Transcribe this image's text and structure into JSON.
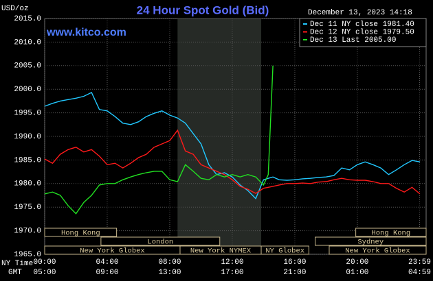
{
  "chart_data": {
    "type": "line",
    "title": "24 Hour Spot Gold (Bid)",
    "subtitle": "www.kitco.com",
    "timestamp": "December 13, 2023 14:18",
    "ylabel": "USD/oz",
    "xlabel": "NY Time",
    "xlabel2": "GMT",
    "xlim": [
      0,
      24.4
    ],
    "ylim": [
      1965,
      2015
    ],
    "yticks": [
      {
        "value": 1965,
        "label": "1965.0"
      },
      {
        "value": 1970,
        "label": "1970.0"
      },
      {
        "value": 1975,
        "label": "1975.0"
      },
      {
        "value": 1980,
        "label": "1980.0"
      },
      {
        "value": 1985,
        "label": "1985.0"
      },
      {
        "value": 1990,
        "label": "1990.0"
      },
      {
        "value": 1995,
        "label": "1995.0"
      },
      {
        "value": 2000,
        "label": "2000.0"
      },
      {
        "value": 2005,
        "label": "2005.0"
      },
      {
        "value": 2010,
        "label": "2010.0"
      },
      {
        "value": 2015,
        "label": "2015.0"
      }
    ],
    "xticks": [
      {
        "value": 0,
        "label": "00:00"
      },
      {
        "value": 4,
        "label": "04:00"
      },
      {
        "value": 8,
        "label": "08:00"
      },
      {
        "value": 12,
        "label": "12:00"
      },
      {
        "value": 16,
        "label": "16:00"
      },
      {
        "value": 20,
        "label": "20:00"
      },
      {
        "value": 23.983,
        "label": "23:59"
      }
    ],
    "xticks_gmt": [
      "05:00",
      "09:00",
      "13:00",
      "17:00",
      "21:00",
      "01:00",
      "04:59"
    ],
    "grid": true,
    "highlight": [
      8.5,
      13.85
    ],
    "sessions": [
      {
        "label": "Hong Kong",
        "row": 0,
        "start": 0,
        "end": 4.6
      },
      {
        "label": "Hong Kong",
        "row": 0,
        "start": 19.9,
        "end": 24.4
      },
      {
        "label": "London",
        "row": 1,
        "start": 3.6,
        "end": 11.2
      },
      {
        "label": "Sydney",
        "row": 1,
        "start": 17.3,
        "end": 24.4
      },
      {
        "label": "New York Globex",
        "row": 2,
        "start": 0,
        "end": 8.66
      },
      {
        "label": "New York NYMEX",
        "row": 2,
        "start": 8.66,
        "end": 13.85
      },
      {
        "label": "NY Globex",
        "row": 2,
        "start": 13.85,
        "end": 16.9
      },
      {
        "label": "New York Globex",
        "row": 2,
        "start": 18.2,
        "end": 24.4
      }
    ],
    "x": [
      0,
      0.5,
      1,
      1.5,
      2,
      2.5,
      3,
      3.5,
      4,
      4.5,
      5,
      5.5,
      6,
      6.5,
      7,
      7.5,
      8,
      8.5,
      9,
      9.5,
      10,
      10.5,
      11,
      11.5,
      12,
      12.5,
      13,
      13.5,
      14,
      14.3,
      14.6,
      15,
      15.5,
      16,
      16.5,
      17,
      17.5,
      18,
      18.5,
      19,
      19.5,
      20,
      20.5,
      21,
      21.5,
      22,
      22.5,
      23,
      23.5,
      24
    ],
    "series": [
      {
        "name": "Dec 11 NY close 1981.40",
        "color": "#22c8ff",
        "values": [
          1996.4,
          1997.0,
          1997.5,
          1997.8,
          1998.1,
          1998.5,
          1999.3,
          1995.7,
          1995.4,
          1994.2,
          1992.8,
          1992.5,
          1993.1,
          1994.2,
          1994.9,
          1995.4,
          1994.5,
          1993.9,
          1992.8,
          1990.6,
          1988.4,
          1984.0,
          1981.9,
          1982.3,
          1981.4,
          1979.7,
          1978.5,
          1976.8,
          1980.8,
          1981.1,
          1981.4,
          1980.8,
          1980.7,
          1980.8,
          1981.0,
          1981.1,
          1981.3,
          1981.4,
          1981.7,
          1983.3,
          1982.9,
          1984.0,
          1984.6,
          1984.0,
          1983.3,
          1981.9,
          1982.9,
          1984.0,
          1984.9,
          1984.6
        ]
      },
      {
        "name": "Dec 12 NY close 1979.50",
        "color": "#ff1a1a",
        "values": [
          1985.2,
          1984.3,
          1986.2,
          1987.2,
          1987.7,
          1986.7,
          1987.2,
          1985.8,
          1984.0,
          1984.3,
          1983.3,
          1984.3,
          1985.5,
          1986.2,
          1987.7,
          1988.4,
          1989.1,
          1991.3,
          1986.9,
          1986.2,
          1984.0,
          1983.3,
          1982.6,
          1981.9,
          1980.8,
          1979.4,
          1978.8,
          1977.9,
          1979.0,
          1979.2,
          1979.4,
          1979.7,
          1980.0,
          1980.0,
          1980.1,
          1980.0,
          1980.3,
          1980.4,
          1980.8,
          1981.1,
          1980.8,
          1980.7,
          1980.7,
          1980.4,
          1980.0,
          1980.0,
          1979.0,
          1978.2,
          1979.2,
          1977.8
        ]
      },
      {
        "name": "Dec 13 Last 2005.00",
        "color": "#22e022",
        "values": [
          1977.8,
          1978.2,
          1977.5,
          1975.3,
          1973.6,
          1976.0,
          1977.5,
          1979.7,
          1980.0,
          1980.0,
          1980.8,
          1981.4,
          1981.9,
          1982.3,
          1982.6,
          1982.6,
          1980.8,
          1980.4,
          1984.0,
          1982.6,
          1981.1,
          1980.8,
          1981.9,
          1981.4,
          1981.9,
          1981.4,
          1981.9,
          1981.4,
          1979.7,
          1981.9,
          2005.0,
          null,
          null,
          null,
          null,
          null,
          null,
          null,
          null,
          null,
          null,
          null,
          null,
          null,
          null,
          null,
          null,
          null,
          null,
          null
        ]
      }
    ]
  }
}
